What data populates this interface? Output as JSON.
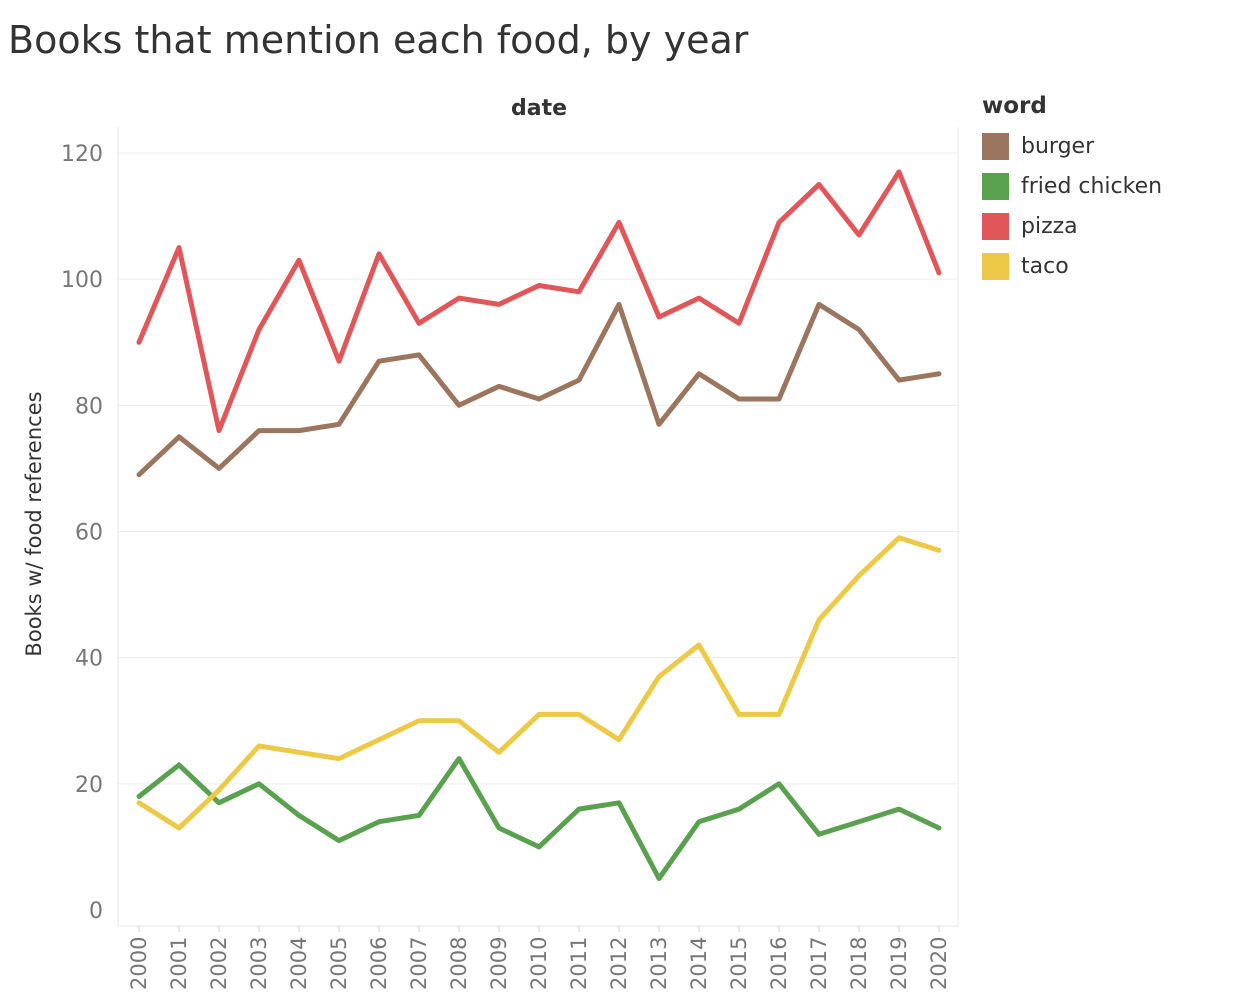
{
  "chart_data": {
    "type": "line",
    "title": "Books that mention each food, by year",
    "header_label": "date",
    "ylabel": "Books w/ food references",
    "ylim": [
      0,
      120
    ],
    "yticks": [
      0,
      20,
      40,
      60,
      80,
      100,
      120
    ],
    "grid": true,
    "legend": {
      "title": "word",
      "position": "right"
    },
    "x": [
      "2000",
      "2001",
      "2002",
      "2003",
      "2004",
      "2005",
      "2006",
      "2007",
      "2008",
      "2009",
      "2010",
      "2011",
      "2012",
      "2013",
      "2014",
      "2015",
      "2016",
      "2017",
      "2018",
      "2019",
      "2020"
    ],
    "series": [
      {
        "name": "burger",
        "color": "#9c755f",
        "values": [
          69,
          75,
          70,
          76,
          76,
          77,
          87,
          88,
          80,
          83,
          81,
          84,
          96,
          77,
          85,
          81,
          81,
          96,
          92,
          84,
          85
        ]
      },
      {
        "name": "fried chicken",
        "color": "#59a14f",
        "values": [
          18,
          23,
          17,
          20,
          15,
          11,
          14,
          15,
          24,
          13,
          10,
          16,
          17,
          5,
          14,
          16,
          20,
          12,
          14,
          16,
          13
        ]
      },
      {
        "name": "pizza",
        "color": "#e15759",
        "values": [
          90,
          105,
          76,
          92,
          103,
          87,
          104,
          93,
          97,
          96,
          99,
          98,
          109,
          94,
          97,
          93,
          109,
          115,
          107,
          117,
          101
        ]
      },
      {
        "name": "taco",
        "color": "#edc948",
        "values": [
          17,
          13,
          19,
          26,
          25,
          24,
          27,
          30,
          30,
          25,
          31,
          31,
          27,
          37,
          42,
          31,
          31,
          46,
          53,
          59,
          57
        ]
      }
    ]
  }
}
